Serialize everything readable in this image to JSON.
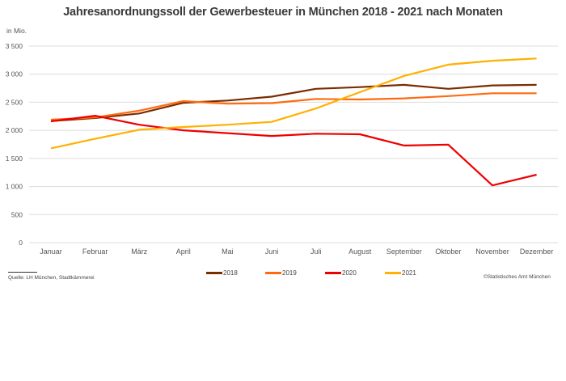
{
  "chart_data": {
    "type": "line",
    "title": "Jahresanordnungssoll der Gewerbesteuer in München 2018 - 2021 nach Monaten",
    "ylabel": "in Mio.",
    "xlabel": "",
    "ylim": [
      0,
      3500
    ],
    "yticks": [
      0,
      500,
      1000,
      1500,
      2000,
      2500,
      3000,
      3500
    ],
    "ytick_labels": [
      "0",
      "500",
      "1 000",
      "1 500",
      "2 000",
      "2 500",
      "3 000",
      "3 500"
    ],
    "grid": true,
    "legend_position": "bottom",
    "categories": [
      "Januar",
      "Februar",
      "März",
      "April",
      "Mai",
      "Juni",
      "Juli",
      "August",
      "September",
      "Oktober",
      "November",
      "Dezember"
    ],
    "series": [
      {
        "name": "2018",
        "color": "#7b2c00",
        "values": [
          2165,
          2220,
          2300,
          2490,
          2530,
          2600,
          2740,
          2770,
          2810,
          2740,
          2800,
          2810
        ]
      },
      {
        "name": "2019",
        "color": "#ff6a10",
        "values": [
          2190,
          2230,
          2350,
          2520,
          2475,
          2485,
          2560,
          2550,
          2570,
          2610,
          2660,
          2660
        ]
      },
      {
        "name": "2020",
        "color": "#ee0000",
        "values": [
          2160,
          2260,
          2100,
          2000,
          1950,
          1900,
          1940,
          1930,
          1730,
          1745,
          1020,
          1210
        ]
      },
      {
        "name": "2021",
        "color": "#ffb000",
        "values": [
          1680,
          1850,
          2010,
          2060,
          2100,
          2150,
          2390,
          2680,
          2970,
          3170,
          3240,
          3280
        ]
      }
    ],
    "source": "Quelle: LH München, Stadtkämmerei",
    "copyright": "©Statistisches Amt München"
  }
}
